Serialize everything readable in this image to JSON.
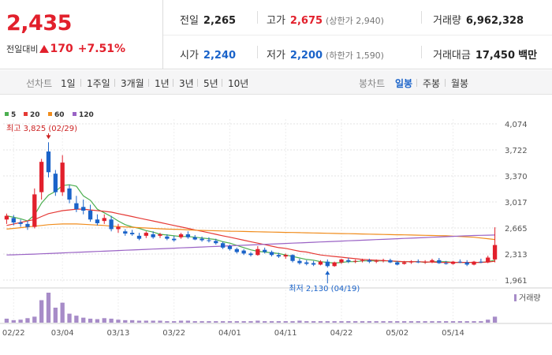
{
  "price": {
    "current": "2,435",
    "change_label": "전일대비",
    "change_icon": "up-triangle-icon",
    "change_amount": "170",
    "change_rate": "+7.51%"
  },
  "stats": {
    "prev_close_label": "전일",
    "prev_close": "2,265",
    "high_label": "고가",
    "high": "2,675",
    "upper_limit": "(상한가 2,940)",
    "volume_label": "거래량",
    "volume": "6,962,328",
    "open_label": "시가",
    "open": "2,240",
    "low_label": "저가",
    "low": "2,200",
    "lower_limit": "(하한가 1,590)",
    "amount_label": "거래대금",
    "amount": "17,450",
    "amount_unit": "백만"
  },
  "toolbar": {
    "line_label": "선차트",
    "line_periods": [
      "1일",
      "1주일",
      "3개월",
      "1년",
      "3년",
      "5년",
      "10년"
    ],
    "candle_label": "봉차트",
    "candle_periods": [
      "일봉",
      "주봉",
      "월봉"
    ],
    "candle_active": "일봉"
  },
  "chart_data": {
    "type": "candlestick",
    "legend": [
      {
        "name": "5",
        "color": "#4caf50"
      },
      {
        "name": "20",
        "color": "#e53935"
      },
      {
        "name": "60",
        "color": "#f08c1c"
      },
      {
        "name": "120",
        "color": "#9a63c5"
      }
    ],
    "y_ticks": [
      "4,074",
      "3,722",
      "3,370",
      "3,017",
      "2,665",
      "2,313",
      "1,961"
    ],
    "ylim": [
      1961,
      4074
    ],
    "x_ticks": [
      "02/22",
      "03/04",
      "03/13",
      "03/22",
      "04/01",
      "04/11",
      "04/22",
      "05/02",
      "05/14"
    ],
    "x_tick_index": [
      1,
      8,
      16,
      24,
      32,
      40,
      48,
      56,
      64
    ],
    "annotations": {
      "high_text": "최고 3,825 (02/29)",
      "high_index": 6,
      "high_value": 3825,
      "low_text": "최저 2,130 (04/19)",
      "low_index": 46,
      "low_value": 2130
    },
    "volume_label": "거래량",
    "ohlc": [
      [
        2780,
        2860,
        2720,
        2830
      ],
      [
        2800,
        2840,
        2700,
        2740
      ],
      [
        2740,
        2780,
        2680,
        2720
      ],
      [
        2720,
        2760,
        2640,
        2680
      ],
      [
        2680,
        3200,
        2660,
        3120
      ],
      [
        3150,
        3600,
        3050,
        3560
      ],
      [
        3700,
        3825,
        3350,
        3420
      ],
      [
        3400,
        3450,
        3100,
        3150
      ],
      [
        3150,
        3650,
        3100,
        3550
      ],
      [
        3200,
        3250,
        3000,
        3050
      ],
      [
        3000,
        3100,
        2880,
        2920
      ],
      [
        2950,
        3050,
        2850,
        2900
      ],
      [
        2900,
        2980,
        2750,
        2780
      ],
      [
        2780,
        2850,
        2700,
        2730
      ],
      [
        2760,
        2850,
        2720,
        2800
      ],
      [
        2780,
        2830,
        2620,
        2650
      ],
      [
        2650,
        2720,
        2600,
        2680
      ],
      [
        2620,
        2650,
        2560,
        2590
      ],
      [
        2600,
        2640,
        2560,
        2580
      ],
      [
        2560,
        2600,
        2500,
        2520
      ],
      [
        2560,
        2620,
        2530,
        2600
      ],
      [
        2580,
        2620,
        2520,
        2540
      ],
      [
        2560,
        2600,
        2530,
        2580
      ],
      [
        2550,
        2580,
        2500,
        2520
      ],
      [
        2520,
        2560,
        2480,
        2500
      ],
      [
        2540,
        2600,
        2520,
        2580
      ],
      [
        2580,
        2620,
        2520,
        2540
      ],
      [
        2540,
        2570,
        2500,
        2510
      ],
      [
        2520,
        2550,
        2480,
        2500
      ],
      [
        2500,
        2540,
        2470,
        2490
      ],
      [
        2490,
        2520,
        2440,
        2460
      ],
      [
        2460,
        2480,
        2380,
        2400
      ],
      [
        2420,
        2440,
        2360,
        2380
      ],
      [
        2380,
        2400,
        2320,
        2340
      ],
      [
        2360,
        2380,
        2300,
        2320
      ],
      [
        2320,
        2340,
        2280,
        2300
      ],
      [
        2300,
        2420,
        2290,
        2380
      ],
      [
        2370,
        2400,
        2320,
        2340
      ],
      [
        2340,
        2360,
        2280,
        2300
      ],
      [
        2300,
        2330,
        2260,
        2280
      ],
      [
        2280,
        2320,
        2250,
        2300
      ],
      [
        2300,
        2310,
        2200,
        2220
      ],
      [
        2220,
        2250,
        2170,
        2190
      ],
      [
        2200,
        2230,
        2160,
        2180
      ],
      [
        2190,
        2220,
        2150,
        2170
      ],
      [
        2170,
        2230,
        2160,
        2210
      ],
      [
        2210,
        2240,
        2130,
        2150
      ],
      [
        2150,
        2210,
        2140,
        2200
      ],
      [
        2200,
        2250,
        2180,
        2240
      ],
      [
        2230,
        2260,
        2190,
        2210
      ],
      [
        2210,
        2240,
        2190,
        2220
      ],
      [
        2220,
        2250,
        2200,
        2230
      ],
      [
        2230,
        2250,
        2190,
        2210
      ],
      [
        2210,
        2240,
        2190,
        2220
      ],
      [
        2220,
        2250,
        2200,
        2230
      ],
      [
        2230,
        2250,
        2190,
        2200
      ],
      [
        2200,
        2220,
        2160,
        2170
      ],
      [
        2180,
        2220,
        2170,
        2200
      ],
      [
        2200,
        2230,
        2180,
        2210
      ],
      [
        2210,
        2240,
        2190,
        2200
      ],
      [
        2200,
        2230,
        2180,
        2210
      ],
      [
        2210,
        2250,
        2190,
        2230
      ],
      [
        2230,
        2260,
        2180,
        2190
      ],
      [
        2190,
        2220,
        2170,
        2180
      ],
      [
        2180,
        2220,
        2170,
        2210
      ],
      [
        2210,
        2240,
        2190,
        2200
      ],
      [
        2200,
        2230,
        2150,
        2170
      ],
      [
        2170,
        2220,
        2160,
        2210
      ],
      [
        2210,
        2250,
        2190,
        2200
      ],
      [
        2200,
        2290,
        2190,
        2265
      ],
      [
        2240,
        2675,
        2200,
        2435
      ]
    ],
    "volume": [
      8,
      5,
      6,
      9,
      12,
      45,
      60,
      30,
      40,
      18,
      14,
      10,
      8,
      7,
      9,
      8,
      6,
      5,
      5,
      4,
      4,
      4,
      4,
      3,
      3,
      4,
      4,
      3,
      3,
      3,
      3,
      3,
      3,
      3,
      3,
      3,
      4,
      3,
      3,
      3,
      3,
      3,
      4,
      3,
      3,
      3,
      3,
      3,
      3,
      3,
      3,
      3,
      3,
      3,
      3,
      3,
      3,
      3,
      3,
      3,
      3,
      3,
      3,
      3,
      3,
      3,
      3,
      3,
      3,
      6,
      12
    ],
    "ma5": [
      2830,
      2810,
      2790,
      2760,
      2840,
      3000,
      3110,
      3160,
      3240,
      3250,
      3230,
      3100,
      3040,
      2920,
      2870,
      2820,
      2760,
      2710,
      2680,
      2660,
      2630,
      2610,
      2580,
      2570,
      2560,
      2550,
      2550,
      2540,
      2530,
      2520,
      2510,
      2480,
      2460,
      2430,
      2400,
      2370,
      2350,
      2340,
      2330,
      2320,
      2300,
      2280,
      2260,
      2240,
      2230,
      2210,
      2200,
      2190,
      2200,
      2210,
      2210,
      2220,
      2220,
      2220,
      2220,
      2220,
      2210,
      2210,
      2210,
      2210,
      2200,
      2210,
      2210,
      2210,
      2200,
      2200,
      2200,
      2200,
      2200,
      2210,
      2230
    ],
    "ma20": [
      2700,
      2720,
      2740,
      2760,
      2780,
      2820,
      2860,
      2880,
      2900,
      2910,
      2920,
      2920,
      2910,
      2900,
      2890,
      2880,
      2860,
      2840,
      2820,
      2800,
      2780,
      2760,
      2740,
      2720,
      2700,
      2680,
      2660,
      2640,
      2620,
      2600,
      2580,
      2560,
      2540,
      2520,
      2500,
      2480,
      2460,
      2440,
      2420,
      2400,
      2390,
      2370,
      2350,
      2340,
      2320,
      2300,
      2290,
      2280,
      2270,
      2260,
      2250,
      2240,
      2235,
      2230,
      2225,
      2220,
      2215,
      2210,
      2210,
      2210,
      2205,
      2205,
      2200,
      2200,
      2200,
      2200,
      2200,
      2200,
      2200,
      2205,
      2215
    ],
    "ma60": [
      2650,
      2660,
      2670,
      2680,
      2690,
      2700,
      2710,
      2715,
      2720,
      2720,
      2720,
      2715,
      2710,
      2705,
      2700,
      2690,
      2685,
      2680,
      2675,
      2670,
      2665,
      2660,
      2655,
      2650,
      2648,
      2645,
      2640,
      2635,
      2632,
      2630,
      2628,
      2625,
      2622,
      2620,
      2618,
      2616,
      2614,
      2612,
      2610,
      2608,
      2606,
      2604,
      2602,
      2600,
      2598,
      2596,
      2594,
      2592,
      2590,
      2588,
      2586,
      2584,
      2582,
      2580,
      2578,
      2576,
      2574,
      2572,
      2570,
      2568,
      2566,
      2564,
      2562,
      2560,
      2555,
      2550,
      2545,
      2540,
      2530,
      2520,
      2510
    ],
    "ma120": [
      2300,
      2303,
      2306,
      2309,
      2312,
      2316,
      2320,
      2324,
      2328,
      2332,
      2336,
      2340,
      2344,
      2348,
      2352,
      2356,
      2360,
      2364,
      2368,
      2372,
      2376,
      2380,
      2384,
      2388,
      2392,
      2396,
      2400,
      2404,
      2408,
      2412,
      2416,
      2420,
      2424,
      2428,
      2432,
      2436,
      2440,
      2444,
      2448,
      2452,
      2456,
      2460,
      2464,
      2468,
      2472,
      2476,
      2480,
      2484,
      2488,
      2492,
      2496,
      2500,
      2504,
      2508,
      2512,
      2516,
      2520,
      2524,
      2528,
      2532,
      2536,
      2540,
      2544,
      2548,
      2552,
      2556,
      2560,
      2564,
      2566,
      2568,
      2570
    ]
  }
}
